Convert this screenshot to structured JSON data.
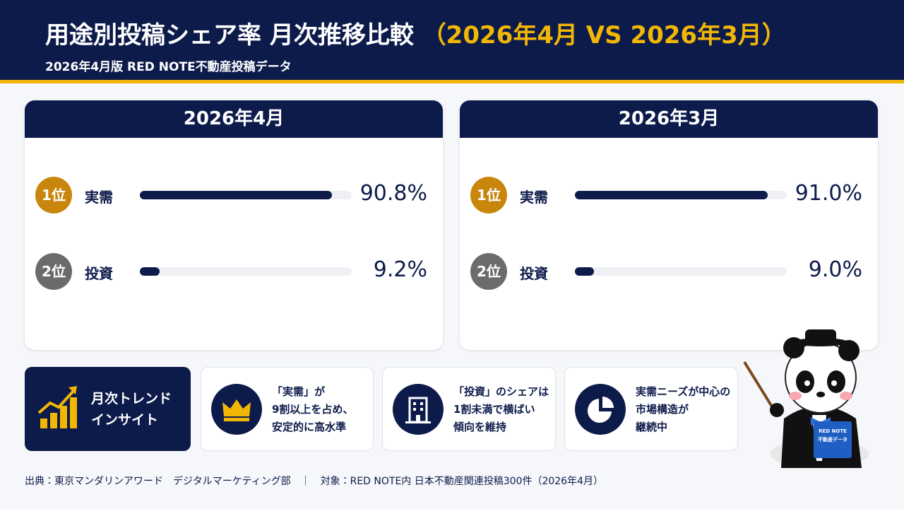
{
  "header": {
    "title": "用途別投稿シェア率 月次推移比較",
    "title_accent": "（2026年4月 VS 2026年3月）",
    "subtitle": "2026年4月版 RED NOTE不動産投稿データ"
  },
  "chart_data": [
    {
      "type": "bar",
      "title": "2026年4月",
      "ranks": [
        "1位",
        "2位"
      ],
      "categories": [
        "実需",
        "投資"
      ],
      "values": [
        90.8,
        9.2
      ],
      "value_labels": [
        "90.8%",
        "9.2%"
      ],
      "xlim": [
        0,
        100
      ],
      "color": "#0d1b4b",
      "rank_colors": [
        "#c8860d",
        "#6b6b6b"
      ]
    },
    {
      "type": "bar",
      "title": "2026年3月",
      "ranks": [
        "1位",
        "2位"
      ],
      "categories": [
        "実需",
        "投資"
      ],
      "values": [
        91.0,
        9.0
      ],
      "value_labels": [
        "91.0%",
        "9.0%"
      ],
      "xlim": [
        0,
        100
      ],
      "color": "#0d1b4b",
      "rank_colors": [
        "#c8860d",
        "#6b6b6b"
      ]
    }
  ],
  "insight": {
    "label": [
      "月次トレンド",
      "インサイト"
    ],
    "cards": [
      [
        "「実需」が",
        "9割以上を占め、",
        "安定的に高水準"
      ],
      [
        "「投資」のシェアは",
        "1割未満で横ばい",
        "傾向を維持"
      ],
      [
        "実需ニーズが中心の",
        "市場構造が",
        "継続中"
      ]
    ]
  },
  "panda_book": [
    "RED NOTE",
    "不動産データ"
  ],
  "footer": "出典：東京マンダリンアワード　デジタルマーケティング部　｜　対象：RED NOTE内 日本不動産関連投稿300件（2026年4月）"
}
